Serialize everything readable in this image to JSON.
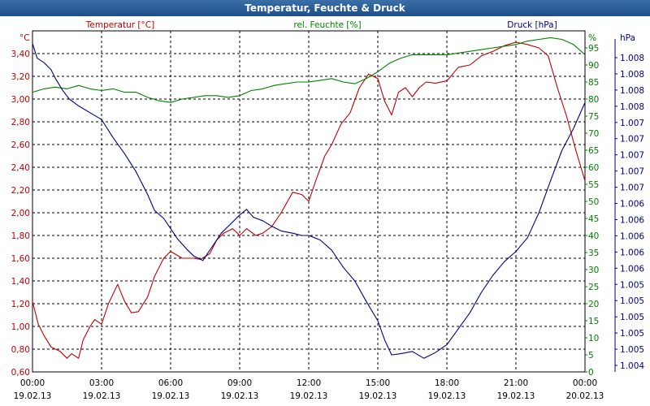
{
  "window": {
    "title": "Temperatur, Feuchte & Druck"
  },
  "chart_data": {
    "type": "line",
    "title": "Temperatur, Feuchte & Druck",
    "x_ticks": [
      {
        "time": "00:00",
        "date": "19.02.13"
      },
      {
        "time": "03:00",
        "date": "19.02.13"
      },
      {
        "time": "06:00",
        "date": "19.02.13"
      },
      {
        "time": "09:00",
        "date": "19.02.13"
      },
      {
        "time": "12:00",
        "date": "19.02.13"
      },
      {
        "time": "15:00",
        "date": "19.02.13"
      },
      {
        "time": "18:00",
        "date": "19.02.13"
      },
      {
        "time": "21:00",
        "date": "19.02.13"
      },
      {
        "time": "00:00",
        "date": "20.02.13"
      }
    ],
    "xlim": [
      0,
      24
    ],
    "x_unit": "hours since 19.02.13 00:00",
    "axes": {
      "temperature": {
        "label": "Temperatur [°C]",
        "unit": "°C",
        "color": "#c00000",
        "ylim": [
          0.6,
          3.6
        ],
        "ticks": [
          "0,60",
          "0,80",
          "1,00",
          "1,20",
          "1,40",
          "1,60",
          "1,80",
          "2,00",
          "2,20",
          "2,40",
          "2,60",
          "2,80",
          "3,00",
          "3,20",
          "3,40"
        ]
      },
      "humidity": {
        "label": "rel. Feuchte [%]",
        "unit": "%",
        "color": "#008000",
        "ylim": [
          0,
          100
        ],
        "ticks": [
          "0",
          "5",
          "10",
          "15",
          "20",
          "25",
          "30",
          "35",
          "40",
          "45",
          "50",
          "55",
          "60",
          "65",
          "70",
          "75",
          "80",
          "85",
          "90",
          "95"
        ]
      },
      "pressure": {
        "label": "Druck [hPa]",
        "unit": "hPa",
        "color": "#000080",
        "ticks": [
          "1.004",
          "1.005",
          "1.005",
          "1.005",
          "1.005",
          "1.005",
          "1.006",
          "1.006",
          "1.006",
          "1.006",
          "1.006",
          "1.007",
          "1.007",
          "1.007",
          "1.007",
          "1.007",
          "1.008",
          "1.008",
          "1.008",
          "1.008"
        ]
      }
    },
    "grid": true,
    "series": [
      {
        "name": "Temperatur [°C]",
        "axis": "temperature",
        "color": "#c00000",
        "points": [
          [
            0,
            1.22
          ],
          [
            0.25,
            1.02
          ],
          [
            0.5,
            0.92
          ],
          [
            0.8,
            0.82
          ],
          [
            1.2,
            0.78
          ],
          [
            1.5,
            0.72
          ],
          [
            1.7,
            0.76
          ],
          [
            2.0,
            0.72
          ],
          [
            2.2,
            0.88
          ],
          [
            2.5,
            1.0
          ],
          [
            2.7,
            1.06
          ],
          [
            3.0,
            1.02
          ],
          [
            3.3,
            1.2
          ],
          [
            3.7,
            1.37
          ],
          [
            4.0,
            1.22
          ],
          [
            4.3,
            1.12
          ],
          [
            4.6,
            1.13
          ],
          [
            5.0,
            1.26
          ],
          [
            5.3,
            1.44
          ],
          [
            5.7,
            1.6
          ],
          [
            6.0,
            1.66
          ],
          [
            6.5,
            1.6
          ],
          [
            7.0,
            1.6
          ],
          [
            7.3,
            1.59
          ],
          [
            7.7,
            1.64
          ],
          [
            8.0,
            1.76
          ],
          [
            8.3,
            1.82
          ],
          [
            8.7,
            1.86
          ],
          [
            9.0,
            1.8
          ],
          [
            9.3,
            1.86
          ],
          [
            9.7,
            1.8
          ],
          [
            10.0,
            1.82
          ],
          [
            10.4,
            1.88
          ],
          [
            10.8,
            2.0
          ],
          [
            11.3,
            2.18
          ],
          [
            11.7,
            2.16
          ],
          [
            12.0,
            2.1
          ],
          [
            12.3,
            2.28
          ],
          [
            12.7,
            2.5
          ],
          [
            13.0,
            2.6
          ],
          [
            13.4,
            2.78
          ],
          [
            13.8,
            2.88
          ],
          [
            14.2,
            3.1
          ],
          [
            14.6,
            3.22
          ],
          [
            15.0,
            3.18
          ],
          [
            15.3,
            2.98
          ],
          [
            15.6,
            2.86
          ],
          [
            15.9,
            3.06
          ],
          [
            16.2,
            3.1
          ],
          [
            16.5,
            3.02
          ],
          [
            16.8,
            3.1
          ],
          [
            17.1,
            3.15
          ],
          [
            17.5,
            3.14
          ],
          [
            18.0,
            3.16
          ],
          [
            18.5,
            3.28
          ],
          [
            19.0,
            3.3
          ],
          [
            19.5,
            3.38
          ],
          [
            20.0,
            3.42
          ],
          [
            20.5,
            3.47
          ],
          [
            21.0,
            3.5
          ],
          [
            21.5,
            3.48
          ],
          [
            22.0,
            3.45
          ],
          [
            22.4,
            3.38
          ],
          [
            22.8,
            3.1
          ],
          [
            23.2,
            2.85
          ],
          [
            23.6,
            2.55
          ],
          [
            24.0,
            2.28
          ]
        ]
      },
      {
        "name": "rel. Feuchte [%]",
        "axis": "humidity",
        "color": "#008000",
        "points": [
          [
            0,
            82
          ],
          [
            0.5,
            83
          ],
          [
            1.0,
            83.5
          ],
          [
            1.5,
            83
          ],
          [
            2.0,
            84
          ],
          [
            2.5,
            83
          ],
          [
            3.0,
            82.5
          ],
          [
            3.5,
            83
          ],
          [
            4.0,
            82
          ],
          [
            4.5,
            82
          ],
          [
            5.0,
            80.5
          ],
          [
            5.5,
            79.5
          ],
          [
            6.0,
            79
          ],
          [
            6.5,
            80
          ],
          [
            7.0,
            80.5
          ],
          [
            7.5,
            81
          ],
          [
            8.0,
            81
          ],
          [
            8.5,
            80.5
          ],
          [
            9.0,
            81
          ],
          [
            9.5,
            82.5
          ],
          [
            10.0,
            83
          ],
          [
            10.5,
            84
          ],
          [
            11.0,
            84.5
          ],
          [
            11.5,
            85
          ],
          [
            12.0,
            85
          ],
          [
            12.5,
            85.5
          ],
          [
            13.0,
            86
          ],
          [
            13.5,
            85
          ],
          [
            14.0,
            84.5
          ],
          [
            14.5,
            86
          ],
          [
            15.0,
            88
          ],
          [
            15.5,
            90.5
          ],
          [
            16.0,
            92
          ],
          [
            16.5,
            93
          ],
          [
            17.0,
            93
          ],
          [
            17.5,
            93
          ],
          [
            18.0,
            93
          ],
          [
            18.5,
            93.5
          ],
          [
            19.0,
            94
          ],
          [
            19.5,
            94.5
          ],
          [
            20.0,
            95
          ],
          [
            20.5,
            95.5
          ],
          [
            21.0,
            96
          ],
          [
            21.5,
            97
          ],
          [
            22.0,
            97.5
          ],
          [
            22.5,
            98
          ],
          [
            23.0,
            97.5
          ],
          [
            23.5,
            96
          ],
          [
            24.0,
            93
          ]
        ]
      },
      {
        "name": "Druck [hPa]",
        "axis": "pressure",
        "color": "#000080",
        "points": [
          [
            0,
            3.49
          ],
          [
            0.2,
            3.36
          ],
          [
            0.5,
            3.32
          ],
          [
            0.8,
            3.26
          ],
          [
            1.0,
            3.18
          ],
          [
            1.3,
            3.08
          ],
          [
            1.6,
            3.0
          ],
          [
            2.0,
            2.94
          ],
          [
            2.5,
            2.88
          ],
          [
            3.0,
            2.82
          ],
          [
            3.5,
            2.66
          ],
          [
            4.0,
            2.52
          ],
          [
            4.5,
            2.36
          ],
          [
            5.0,
            2.16
          ],
          [
            5.3,
            2.02
          ],
          [
            5.7,
            1.95
          ],
          [
            6.0,
            1.86
          ],
          [
            6.3,
            1.77
          ],
          [
            6.7,
            1.68
          ],
          [
            7.0,
            1.62
          ],
          [
            7.4,
            1.58
          ],
          [
            7.8,
            1.7
          ],
          [
            8.2,
            1.82
          ],
          [
            8.6,
            1.9
          ],
          [
            9.0,
            1.98
          ],
          [
            9.3,
            2.03
          ],
          [
            9.6,
            1.96
          ],
          [
            10.0,
            1.93
          ],
          [
            10.4,
            1.88
          ],
          [
            10.8,
            1.84
          ],
          [
            11.3,
            1.82
          ],
          [
            11.7,
            1.8
          ],
          [
            12.0,
            1.8
          ],
          [
            12.5,
            1.76
          ],
          [
            13.0,
            1.67
          ],
          [
            13.5,
            1.52
          ],
          [
            14.0,
            1.4
          ],
          [
            14.5,
            1.22
          ],
          [
            15.0,
            1.05
          ],
          [
            15.3,
            0.88
          ],
          [
            15.6,
            0.75
          ],
          [
            16.0,
            0.76
          ],
          [
            16.5,
            0.78
          ],
          [
            17.0,
            0.72
          ],
          [
            17.5,
            0.77
          ],
          [
            18.0,
            0.84
          ],
          [
            18.5,
            0.98
          ],
          [
            19.0,
            1.12
          ],
          [
            19.5,
            1.3
          ],
          [
            20.0,
            1.45
          ],
          [
            20.5,
            1.57
          ],
          [
            21.0,
            1.66
          ],
          [
            21.5,
            1.78
          ],
          [
            22.0,
            2.0
          ],
          [
            22.5,
            2.28
          ],
          [
            23.0,
            2.55
          ],
          [
            23.5,
            2.74
          ],
          [
            24.0,
            2.97
          ]
        ]
      }
    ]
  }
}
